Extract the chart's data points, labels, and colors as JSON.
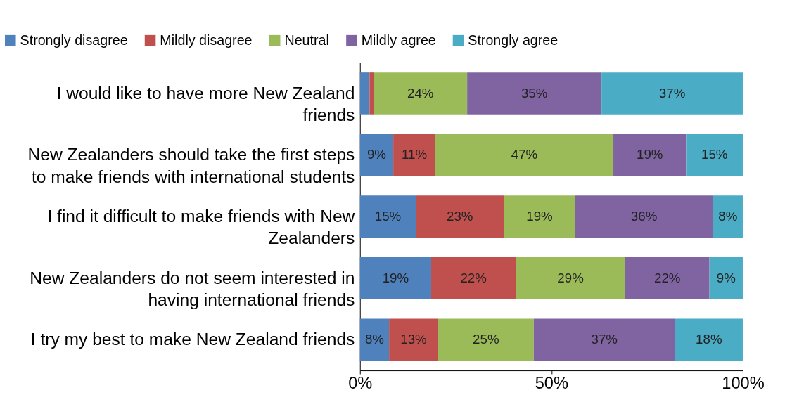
{
  "chart_data": {
    "type": "bar",
    "orientation": "horizontal",
    "stacked": true,
    "categories": [
      "I would like to have more New Zealand friends",
      "New Zealanders should take the first steps to make friends with international students",
      "I find it difficult to make friends with New Zealanders",
      "New Zealanders do not seem interested in having international friends",
      "I try my best to make New Zealand friends"
    ],
    "series": [
      {
        "name": "Strongly disagree",
        "color": "#4f81bd",
        "values": [
          2.5,
          8.7,
          14.6,
          18.6,
          7.6
        ],
        "value_labels": [
          null,
          "9%",
          "15%",
          "19%",
          "8%"
        ]
      },
      {
        "name": "Mildly disagree",
        "color": "#c0504d",
        "values": [
          1.1,
          11.0,
          23.0,
          22.1,
          12.8
        ],
        "value_labels": [
          null,
          "11%",
          "23%",
          "22%",
          "13%"
        ]
      },
      {
        "name": "Neutral",
        "color": "#9bbb59",
        "values": [
          24.4,
          46.5,
          18.6,
          28.6,
          25.0
        ],
        "value_labels": [
          "24%",
          "47%",
          "19%",
          "29%",
          "25%"
        ]
      },
      {
        "name": "Mildly agree",
        "color": "#8064a2",
        "values": [
          35.1,
          19.0,
          36.0,
          22.0,
          36.9
        ],
        "value_labels": [
          "35%",
          "19%",
          "36%",
          "22%",
          "37%"
        ]
      },
      {
        "name": "Strongly agree",
        "color": "#4bacc6",
        "values": [
          36.9,
          14.8,
          7.8,
          8.7,
          17.7
        ],
        "value_labels": [
          "37%",
          "15%",
          "8%",
          "9%",
          "18%"
        ]
      }
    ],
    "xlim": [
      0,
      100
    ],
    "xticks": [
      {
        "value": 0,
        "label": "0%"
      },
      {
        "value": 50,
        "label": "50%"
      },
      {
        "value": 100,
        "label": "100%"
      }
    ],
    "grid": false,
    "legend": "top left"
  }
}
